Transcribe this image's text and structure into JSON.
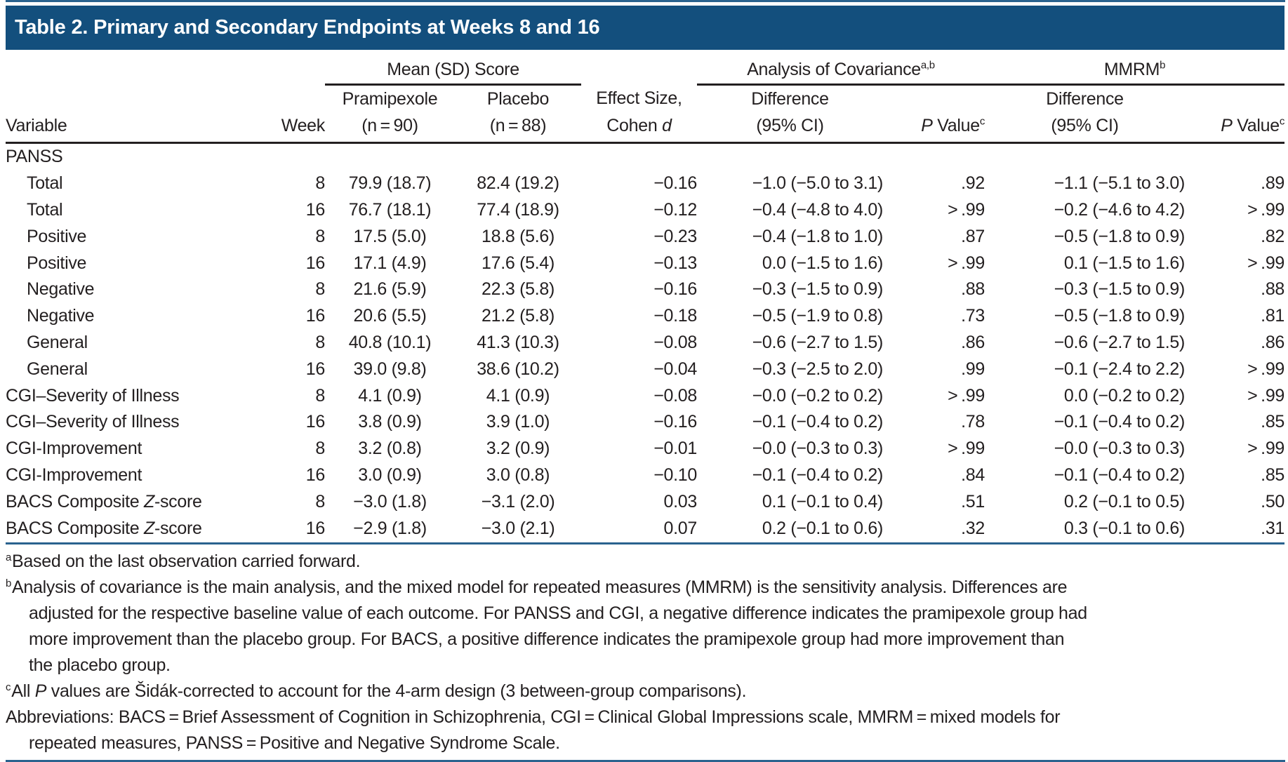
{
  "colors": {
    "title_bar_background": "#134f7d",
    "title_text": "#ffffff",
    "blue_rule": "#2a628e",
    "black_rule": "#231f20",
    "body_text": "#231f20"
  },
  "header": {
    "title": "Table 2. Primary and Secondary Endpoints at Weeks 8 and 16"
  },
  "table": {
    "spanners": {
      "mean_sd": "Mean (SD) Score",
      "ancova": "Analysis of Covariance",
      "ancova_sup": "a,b",
      "mmrm": "MMRM",
      "mmrm_sup": "b"
    },
    "columns": {
      "variable": "Variable",
      "week": "Week",
      "pramipexole_line1": "Pramipexole",
      "pramipexole_line2": "(n = 90)",
      "placebo_line1": "Placebo",
      "placebo_line2": "(n = 88)",
      "effect_line1": "Effect Size,",
      "effect_line2_pre": "Cohen ",
      "effect_line2_italic": "d",
      "difference_line1": "Difference",
      "difference_line2": "(95% CI)",
      "pvalue_italic": "P",
      "pvalue_rest": " Value",
      "pvalue_sup": "c"
    },
    "rows": [
      {
        "label": "PANSS",
        "indent": false,
        "week": "",
        "pramipexole": "",
        "placebo": "",
        "effect": "",
        "ancova_diff": "",
        "ancova_p": "",
        "mmrm_diff": "",
        "mmrm_p": ""
      },
      {
        "label": "Total",
        "indent": true,
        "week": "8",
        "pramipexole": "79.9 (18.7)",
        "placebo": "82.4 (19.2)",
        "effect": "−0.16",
        "ancova_diff": "−1.0 (−5.0 to 3.1)",
        "ancova_p": ".92",
        "mmrm_diff": "−1.1 (−5.1 to 3.0)",
        "mmrm_p": ".89"
      },
      {
        "label": "Total",
        "indent": true,
        "week": "16",
        "pramipexole": "76.7 (18.1)",
        "placebo": "77.4 (18.9)",
        "effect": "−0.12",
        "ancova_diff": "−0.4 (−4.8 to 4.0)",
        "ancova_p": "> .99",
        "mmrm_diff": "−0.2 (−4.6 to 4.2)",
        "mmrm_p": "> .99"
      },
      {
        "label": "Positive",
        "indent": true,
        "week": "8",
        "pramipexole": "17.5 (5.0)",
        "placebo": "18.8 (5.6)",
        "effect": "−0.23",
        "ancova_diff": "−0.4 (−1.8 to 1.0)",
        "ancova_p": ".87",
        "mmrm_diff": "−0.5 (−1.8 to 0.9)",
        "mmrm_p": ".82"
      },
      {
        "label": "Positive",
        "indent": true,
        "week": "16",
        "pramipexole": "17.1 (4.9)",
        "placebo": "17.6 (5.4)",
        "effect": "−0.13",
        "ancova_diff": "0.0 (−1.5 to 1.6)",
        "ancova_p": "> .99",
        "mmrm_diff": "0.1 (−1.5 to 1.6)",
        "mmrm_p": "> .99"
      },
      {
        "label": "Negative",
        "indent": true,
        "week": "8",
        "pramipexole": "21.6 (5.9)",
        "placebo": "22.3 (5.8)",
        "effect": "−0.16",
        "ancova_diff": "−0.3 (−1.5 to 0.9)",
        "ancova_p": ".88",
        "mmrm_diff": "−0.3 (−1.5 to 0.9)",
        "mmrm_p": ".88"
      },
      {
        "label": "Negative",
        "indent": true,
        "week": "16",
        "pramipexole": "20.6 (5.5)",
        "placebo": "21.2 (5.8)",
        "effect": "−0.18",
        "ancova_diff": "−0.5 (−1.9 to 0.8)",
        "ancova_p": ".73",
        "mmrm_diff": "−0.5 (−1.8 to 0.9)",
        "mmrm_p": ".81"
      },
      {
        "label": "General",
        "indent": true,
        "week": "8",
        "pramipexole": "40.8 (10.1)",
        "placebo": "41.3 (10.3)",
        "effect": "−0.08",
        "ancova_diff": "−0.6 (−2.7 to 1.5)",
        "ancova_p": ".86",
        "mmrm_diff": "−0.6 (−2.7 to 1.5)",
        "mmrm_p": ".86"
      },
      {
        "label": "General",
        "indent": true,
        "week": "16",
        "pramipexole": "39.0 (9.8)",
        "placebo": "38.6 (10.2)",
        "effect": "−0.04",
        "ancova_diff": "−0.3 (−2.5 to 2.0)",
        "ancova_p": ".99",
        "mmrm_diff": "−0.1 (−2.4 to 2.2)",
        "mmrm_p": "> .99"
      },
      {
        "label": "CGI–Severity of Illness",
        "indent": false,
        "week": "8",
        "pramipexole": "4.1 (0.9)",
        "placebo": "4.1 (0.9)",
        "effect": "−0.08",
        "ancova_diff": "−0.0 (−0.2 to 0.2)",
        "ancova_p": "> .99",
        "mmrm_diff": "0.0 (−0.2 to 0.2)",
        "mmrm_p": "> .99"
      },
      {
        "label": "CGI–Severity of Illness",
        "indent": false,
        "week": "16",
        "pramipexole": "3.8 (0.9)",
        "placebo": "3.9 (1.0)",
        "effect": "−0.16",
        "ancova_diff": "−0.1 (−0.4 to 0.2)",
        "ancova_p": ".78",
        "mmrm_diff": "−0.1 (−0.4 to 0.2)",
        "mmrm_p": ".85"
      },
      {
        "label": "CGI-Improvement",
        "indent": false,
        "week": "8",
        "pramipexole": "3.2 (0.8)",
        "placebo": "3.2 (0.9)",
        "effect": "−0.01",
        "ancova_diff": "−0.0 (−0.3 to 0.3)",
        "ancova_p": "> .99",
        "mmrm_diff": "−0.0 (−0.3 to 0.3)",
        "mmrm_p": "> .99"
      },
      {
        "label": "CGI-Improvement",
        "indent": false,
        "week": "16",
        "pramipexole": "3.0 (0.9)",
        "placebo": "3.0 (0.8)",
        "effect": "−0.10",
        "ancova_diff": "−0.1 (−0.4 to 0.2)",
        "ancova_p": ".84",
        "mmrm_diff": "−0.1 (−0.4 to 0.2)",
        "mmrm_p": ".85"
      },
      {
        "label": "BACS Composite Z-score",
        "indent": false,
        "week": "8",
        "pramipexole": "−3.0 (1.8)",
        "placebo": "−3.1 (2.0)",
        "effect": "0.03",
        "ancova_diff": "0.1 (−0.1 to 0.4)",
        "ancova_p": ".51",
        "mmrm_diff": "0.2 (−0.1 to 0.5)",
        "mmrm_p": ".50"
      },
      {
        "label": "BACS Composite Z-score",
        "indent": false,
        "week": "16",
        "pramipexole": "−2.9 (1.8)",
        "placebo": "−3.0 (2.1)",
        "effect": "0.07",
        "ancova_diff": "0.2 (−0.1 to 0.6)",
        "ancova_p": ".32",
        "mmrm_diff": "0.3 (−0.1 to 0.6)",
        "mmrm_p": ".31"
      }
    ]
  },
  "footnotes": {
    "a": {
      "marker": "a",
      "line1": "Based on the last observation carried forward."
    },
    "b": {
      "marker": "b",
      "line1": "Analysis of covariance is the main analysis, and the mixed model for repeated measures (MMRM) is the sensitivity analysis. Differences are",
      "line2": "adjusted for the respective baseline value of each outcome. For PANSS and CGI, a negative difference indicates the pramipexole group had",
      "line3": "more improvement than the placebo group. For BACS, a positive difference indicates the pramipexole group had more improvement than",
      "line4": "the placebo group."
    },
    "c": {
      "marker": "c",
      "pre": "All ",
      "italic": "P",
      "rest": " values are Šidák-corrected to account for the 4-arm design (3 between-group comparisons)."
    },
    "abbrev": {
      "line1": "Abbreviations: BACS = Brief Assessment of Cognition in Schizophrenia, CGI = Clinical Global Impressions scale, MMRM = mixed models for",
      "line2": "repeated measures, PANSS = Positive and Negative Syndrome Scale."
    }
  }
}
